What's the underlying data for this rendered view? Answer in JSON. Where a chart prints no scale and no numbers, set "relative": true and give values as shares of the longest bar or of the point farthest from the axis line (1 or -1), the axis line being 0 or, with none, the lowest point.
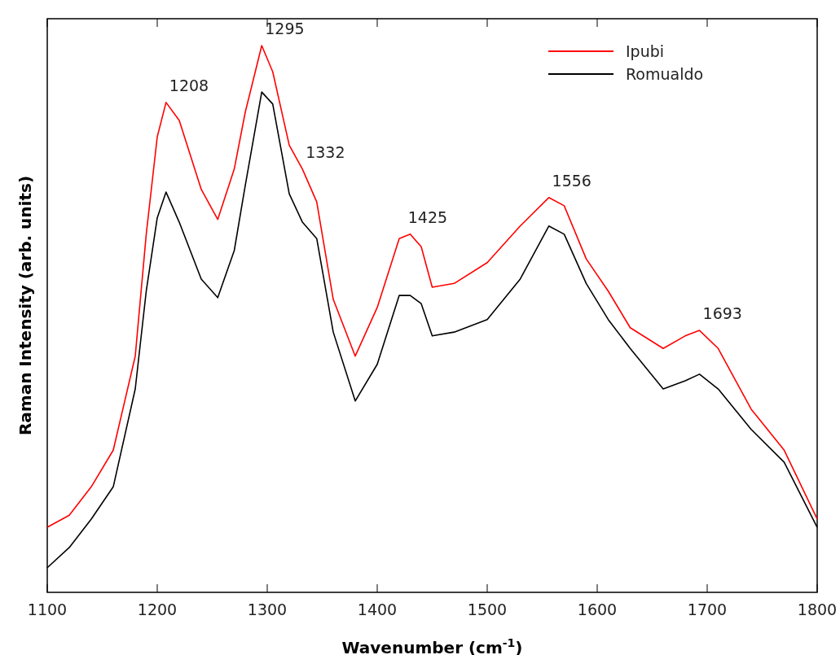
{
  "chart_data": {
    "type": "line",
    "xlabel": "Wavenumber (cm$^{-1}$)",
    "ylabel": "Raman Intensity (arb. units)",
    "relative": true,
    "xlim": [
      1100,
      1800
    ],
    "xticks": [
      1100,
      1200,
      1300,
      1400,
      1500,
      1600,
      1700,
      1800
    ],
    "tick_labels": "x",
    "legend": "top right",
    "grid": false,
    "line_style": "solid",
    "x": [
      1100,
      1120,
      1140,
      1160,
      1180,
      1190,
      1200,
      1208,
      1220,
      1240,
      1255,
      1270,
      1280,
      1295,
      1305,
      1320,
      1332,
      1345,
      1360,
      1380,
      1400,
      1420,
      1430,
      1440,
      1450,
      1470,
      1500,
      1530,
      1556,
      1570,
      1590,
      1610,
      1630,
      1660,
      1680,
      1693,
      1710,
      1740,
      1770,
      1800
    ],
    "series": [
      {
        "name": "Ipubi",
        "color": "#ff0000",
        "values": [
          0.119,
          0.141,
          0.193,
          0.26,
          0.432,
          0.655,
          0.833,
          0.896,
          0.863,
          0.737,
          0.682,
          0.774,
          0.878,
          1,
          0.952,
          0.818,
          0.774,
          0.714,
          0.536,
          0.432,
          0.521,
          0.647,
          0.655,
          0.632,
          0.558,
          0.565,
          0.603,
          0.67,
          0.722,
          0.707,
          0.61,
          0.551,
          0.484,
          0.446,
          0.469,
          0.479,
          0.446,
          0.335,
          0.26,
          0.134
        ]
      },
      {
        "name": "Romualdo",
        "color": "#000000",
        "values": [
          0.045,
          0.082,
          0.134,
          0.193,
          0.372,
          0.551,
          0.685,
          0.732,
          0.677,
          0.573,
          0.539,
          0.625,
          0.744,
          0.915,
          0.893,
          0.729,
          0.677,
          0.647,
          0.476,
          0.35,
          0.417,
          0.543,
          0.543,
          0.528,
          0.469,
          0.476,
          0.499,
          0.573,
          0.67,
          0.655,
          0.565,
          0.499,
          0.446,
          0.372,
          0.387,
          0.399,
          0.372,
          0.298,
          0.238,
          0.119
        ]
      }
    ],
    "annotations": [
      {
        "text": "1208",
        "x": 1208,
        "y": 0.896
      },
      {
        "text": "1295",
        "x": 1295,
        "y": 1
      },
      {
        "text": "1332",
        "x": 1332,
        "y": 0.774
      },
      {
        "text": "1425",
        "x": 1425,
        "y": 0.655
      },
      {
        "text": "1556",
        "x": 1556,
        "y": 0.722
      },
      {
        "text": "1693",
        "x": 1693,
        "y": 0.479
      }
    ]
  }
}
